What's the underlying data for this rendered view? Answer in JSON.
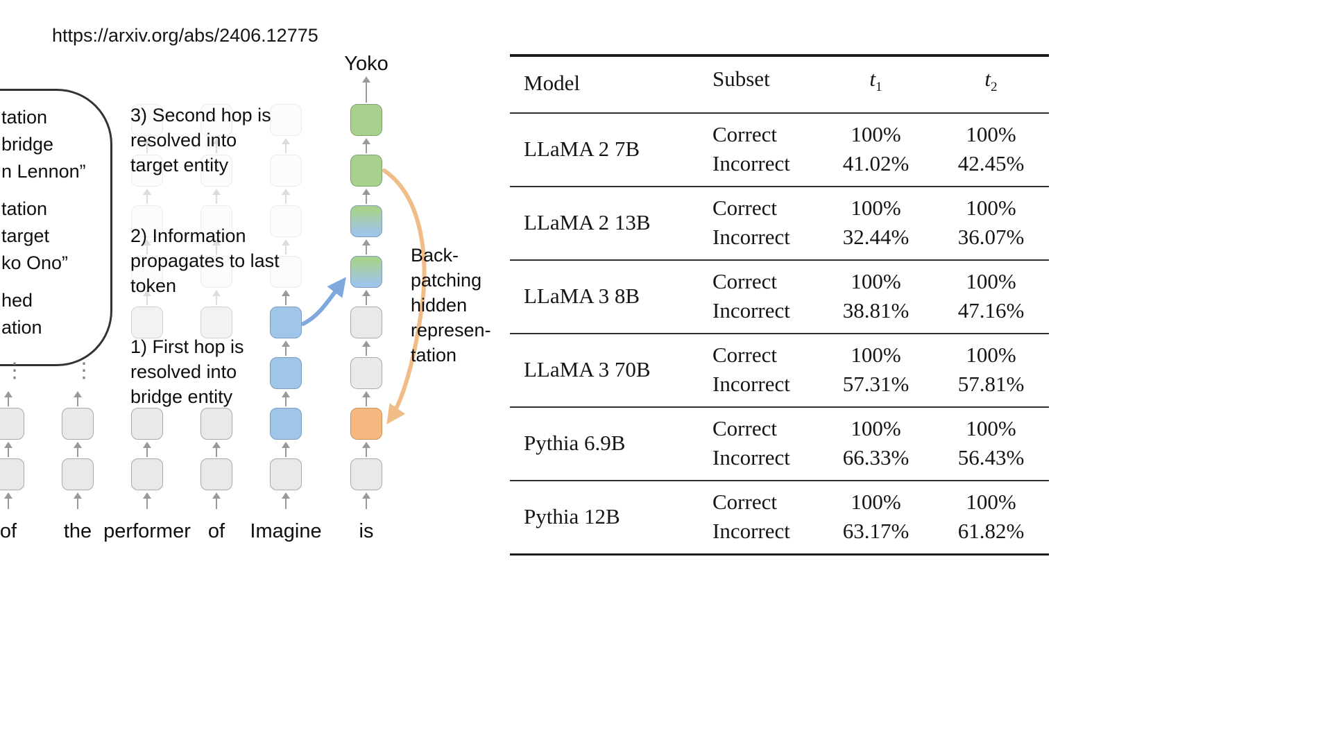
{
  "page": {
    "url_text": "https://arxiv.org/abs/2406.12775"
  },
  "diagram": {
    "output_label": "Yoko",
    "ellipsis": "⋮",
    "tokens": [
      "of",
      "the",
      "performer",
      "of",
      "Imagine",
      "is"
    ],
    "callout_groups": [
      [
        "tation",
        "bridge",
        "n Lennon”"
      ],
      [
        "tation",
        "target",
        "ko Ono”"
      ],
      [
        "hed",
        "ation"
      ]
    ],
    "annotations": {
      "step3": "3) Second hop is\nresolved into\ntarget entity",
      "step2": "2) Information\npropagates to last\ntoken",
      "step1": "1) First hop is\nresolved into\nbridge entity",
      "backpatch": "Back-\npatching\nhidden\nrepresen-\ntation"
    },
    "colors": {
      "green": {
        "fill": "#a9d18e",
        "border": "#7f9f6d"
      },
      "blue": {
        "fill": "#9fc5e8",
        "border": "#7d9cbd"
      },
      "orange": {
        "fill": "#f5b97f",
        "border": "#c98f54"
      },
      "gray": {
        "fill": "#e9e9e9",
        "border": "#a9a9a9"
      },
      "faintgray": {
        "fill": "#f2f2f2",
        "border": "#d2d2d2"
      },
      "faint": {
        "fill": "#fcfcfc",
        "border": "#ebebeb"
      },
      "blue_arrow": "#7fa8dc",
      "orange_arrow": "#f0bd88"
    },
    "columns": [
      {
        "token": "of",
        "dots": true,
        "boxes": [
          {
            "r": 6,
            "c": "gray"
          },
          {
            "r": 7,
            "c": "gray"
          }
        ]
      },
      {
        "token": "the",
        "dots": true,
        "boxes": [
          {
            "r": 6,
            "c": "gray"
          },
          {
            "r": 7,
            "c": "gray"
          }
        ]
      },
      {
        "token": "performer",
        "boxes": [
          {
            "r": 0,
            "c": "faint"
          },
          {
            "r": 1,
            "c": "faint"
          },
          {
            "r": 2,
            "c": "faint"
          },
          {
            "r": 3,
            "c": "faint"
          },
          {
            "r": 4,
            "c": "faintgray"
          },
          {
            "r": 6,
            "c": "gray"
          },
          {
            "r": 7,
            "c": "gray"
          }
        ]
      },
      {
        "token": "of",
        "boxes": [
          {
            "r": 0,
            "c": "faint"
          },
          {
            "r": 1,
            "c": "faint"
          },
          {
            "r": 2,
            "c": "faint"
          },
          {
            "r": 3,
            "c": "faint"
          },
          {
            "r": 4,
            "c": "faintgray"
          },
          {
            "r": 6,
            "c": "gray"
          },
          {
            "r": 7,
            "c": "gray"
          }
        ]
      },
      {
        "token": "Imagine",
        "boxes": [
          {
            "r": 0,
            "c": "faint"
          },
          {
            "r": 1,
            "c": "faint"
          },
          {
            "r": 2,
            "c": "faint"
          },
          {
            "r": 3,
            "c": "faint"
          },
          {
            "r": 4,
            "c": "blue"
          },
          {
            "r": 5,
            "c": "blue"
          },
          {
            "r": 6,
            "c": "blue"
          },
          {
            "r": 7,
            "c": "gray"
          }
        ]
      },
      {
        "token": "is",
        "top_arrow": true,
        "boxes": [
          {
            "r": 0,
            "c": "green"
          },
          {
            "r": 1,
            "c": "green"
          },
          {
            "r": 2,
            "c": "gradient"
          },
          {
            "r": 3,
            "c": "gradient"
          },
          {
            "r": 4,
            "c": "gray"
          },
          {
            "r": 5,
            "c": "gray"
          },
          {
            "r": 6,
            "c": "orange"
          },
          {
            "r": 7,
            "c": "gray"
          }
        ]
      }
    ]
  },
  "table": {
    "headers": {
      "model": "Model",
      "subset": "Subset",
      "t1": {
        "base": "t",
        "sub": "1"
      },
      "t2": {
        "base": "t",
        "sub": "2"
      }
    },
    "groups": [
      {
        "model": "LLaMA 2 7B",
        "rows": [
          {
            "subset": "Correct",
            "t1": "100%",
            "t2": "100%"
          },
          {
            "subset": "Incorrect",
            "t1": "41.02%",
            "t2": "42.45%"
          }
        ]
      },
      {
        "model": "LLaMA 2 13B",
        "rows": [
          {
            "subset": "Correct",
            "t1": "100%",
            "t2": "100%"
          },
          {
            "subset": "Incorrect",
            "t1": "32.44%",
            "t2": "36.07%"
          }
        ]
      },
      {
        "model": "LLaMA 3 8B",
        "rows": [
          {
            "subset": "Correct",
            "t1": "100%",
            "t2": "100%"
          },
          {
            "subset": "Incorrect",
            "t1": "38.81%",
            "t2": "47.16%"
          }
        ]
      },
      {
        "model": "LLaMA 3 70B",
        "rows": [
          {
            "subset": "Correct",
            "t1": "100%",
            "t2": "100%"
          },
          {
            "subset": "Incorrect",
            "t1": "57.31%",
            "t2": "57.81%"
          }
        ]
      },
      {
        "model": "Pythia 6.9B",
        "rows": [
          {
            "subset": "Correct",
            "t1": "100%",
            "t2": "100%"
          },
          {
            "subset": "Incorrect",
            "t1": "66.33%",
            "t2": "56.43%"
          }
        ]
      },
      {
        "model": "Pythia 12B",
        "rows": [
          {
            "subset": "Correct",
            "t1": "100%",
            "t2": "100%"
          },
          {
            "subset": "Incorrect",
            "t1": "63.17%",
            "t2": "61.82%"
          }
        ]
      }
    ]
  }
}
